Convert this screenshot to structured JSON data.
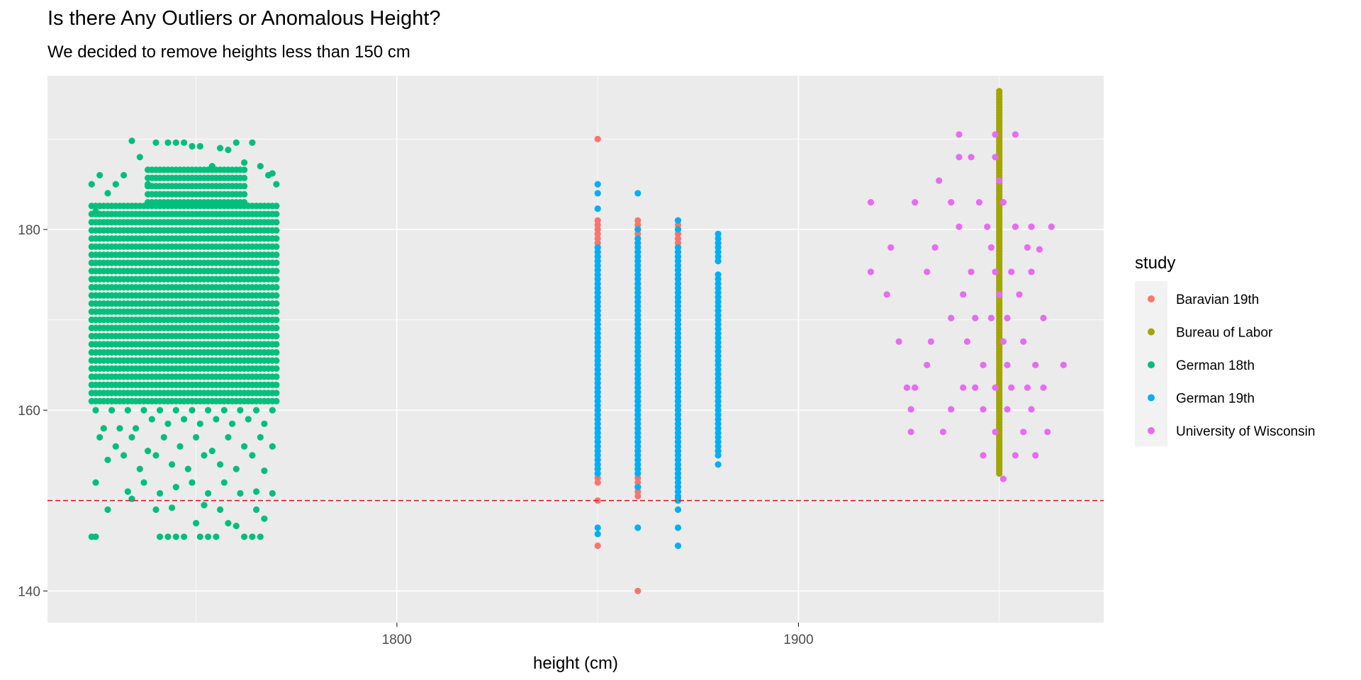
{
  "chart_data": {
    "type": "scatter",
    "title": "Is there Any Outliers or Anomalous Height?",
    "subtitle": "We decided to remove heights less than 150 cm",
    "xlabel": "height (cm)",
    "ylabel": "",
    "xlim": [
      1713,
      1976
    ],
    "ylim": [
      136.5,
      197
    ],
    "x_ticks": [
      1800,
      1900
    ],
    "x_tick_labels": [
      "1800",
      "1900"
    ],
    "y_ticks": [
      140,
      160,
      180
    ],
    "y_tick_labels": [
      "140",
      "160",
      "180"
    ],
    "grid": true,
    "panel_background": "#EBEBEB",
    "reference_line": {
      "y": 150,
      "color": "#E41A1C",
      "style": "dashed"
    },
    "legend": {
      "title": "study",
      "position": "right",
      "entries": [
        {
          "label": "Baravian 19th",
          "color": "#F8766D"
        },
        {
          "label": "Bureau of Labor",
          "color": "#A3A500"
        },
        {
          "label": "German 18th",
          "color": "#00BF7D"
        },
        {
          "label": "German 19th",
          "color": "#00B0F6"
        },
        {
          "label": "University of Wisconsin",
          "color": "#E76BF3"
        }
      ]
    },
    "series": [
      {
        "name": "German 18th",
        "color": "#00BF7D",
        "blocks": [
          {
            "x": [
              1724,
              1770
            ],
            "y": [
              161,
              183
            ],
            "step_x": 1,
            "step_y": 0.9
          },
          {
            "x": [
              1738,
              1762
            ],
            "y": [
              183,
              187
            ],
            "step_x": 1,
            "step_y": 0.9
          }
        ],
        "points": [
          [
            1724,
            185
          ],
          [
            1725,
            182
          ],
          [
            1726,
            186
          ],
          [
            1728,
            184
          ],
          [
            1730,
            185
          ],
          [
            1732,
            186
          ],
          [
            1734,
            189.8
          ],
          [
            1736,
            188
          ],
          [
            1738,
            185
          ],
          [
            1740,
            189.6
          ],
          [
            1743,
            189.6
          ],
          [
            1745,
            189.6
          ],
          [
            1747,
            189.6
          ],
          [
            1749,
            189.2
          ],
          [
            1751,
            189.2
          ],
          [
            1754,
            187
          ],
          [
            1756,
            189
          ],
          [
            1758,
            188.8
          ],
          [
            1760,
            189.6
          ],
          [
            1762,
            187.4
          ],
          [
            1764,
            189.6
          ],
          [
            1766,
            187
          ],
          [
            1768,
            186
          ],
          [
            1769,
            186.2
          ],
          [
            1770,
            185
          ],
          [
            1725,
            160
          ],
          [
            1727,
            158
          ],
          [
            1729,
            160
          ],
          [
            1731,
            158
          ],
          [
            1733,
            160
          ],
          [
            1735,
            158
          ],
          [
            1737,
            160
          ],
          [
            1739,
            159
          ],
          [
            1741,
            160
          ],
          [
            1743,
            158.5
          ],
          [
            1745,
            160
          ],
          [
            1747,
            159
          ],
          [
            1749,
            160
          ],
          [
            1751,
            158.5
          ],
          [
            1753,
            160
          ],
          [
            1755,
            159
          ],
          [
            1757,
            160
          ],
          [
            1759,
            158.5
          ],
          [
            1761,
            160
          ],
          [
            1763,
            159
          ],
          [
            1765,
            160
          ],
          [
            1767,
            158.5
          ],
          [
            1769,
            160
          ],
          [
            1726,
            157
          ],
          [
            1730,
            156
          ],
          [
            1734,
            157
          ],
          [
            1738,
            155.5
          ],
          [
            1742,
            157
          ],
          [
            1746,
            156
          ],
          [
            1750,
            157
          ],
          [
            1754,
            155.5
          ],
          [
            1758,
            157
          ],
          [
            1762,
            156
          ],
          [
            1766,
            157
          ],
          [
            1769,
            156
          ],
          [
            1728,
            154.5
          ],
          [
            1732,
            155
          ],
          [
            1736,
            153.5
          ],
          [
            1740,
            155
          ],
          [
            1744,
            154
          ],
          [
            1748,
            153.5
          ],
          [
            1752,
            155
          ],
          [
            1756,
            154
          ],
          [
            1760,
            153.5
          ],
          [
            1764,
            155
          ],
          [
            1767,
            153.3
          ],
          [
            1725,
            152
          ],
          [
            1733,
            151
          ],
          [
            1737,
            152
          ],
          [
            1741,
            150.8
          ],
          [
            1745,
            151.5
          ],
          [
            1749,
            152
          ],
          [
            1753,
            150.8
          ],
          [
            1757,
            152
          ],
          [
            1761,
            150.8
          ],
          [
            1765,
            151
          ],
          [
            1769,
            150.8
          ],
          [
            1728,
            149
          ],
          [
            1734,
            150.2
          ],
          [
            1740,
            149
          ],
          [
            1744,
            149.2
          ],
          [
            1752,
            149.5
          ],
          [
            1756,
            149
          ],
          [
            1760,
            147.2
          ],
          [
            1765,
            149
          ],
          [
            1767,
            148
          ],
          [
            1724,
            146
          ],
          [
            1725,
            146
          ],
          [
            1741,
            146
          ],
          [
            1743,
            146
          ],
          [
            1745,
            146
          ],
          [
            1747,
            146
          ],
          [
            1751,
            146
          ],
          [
            1753,
            146
          ],
          [
            1755,
            146
          ],
          [
            1762,
            146
          ],
          [
            1764,
            146
          ],
          [
            1766,
            146
          ],
          [
            1750,
            147.5
          ],
          [
            1758,
            147.5
          ]
        ]
      },
      {
        "name": "Baravian 19th",
        "color": "#F8766D",
        "lines": [
          {
            "x": 1850,
            "y": [
              152,
              181
            ],
            "step": 0.5
          },
          {
            "x": 1860,
            "y": [
              150.5,
              181
            ],
            "step": 0.5
          },
          {
            "x": 1870,
            "y": [
              151,
              181
            ],
            "step": 0.5
          }
        ],
        "points": [
          [
            1850,
            190
          ],
          [
            1850,
            150
          ],
          [
            1850,
            145
          ],
          [
            1860,
            140
          ],
          [
            1860,
            155
          ],
          [
            1870,
            150.3
          ],
          [
            1870,
            157
          ]
        ]
      },
      {
        "name": "German 19th",
        "color": "#00B0F6",
        "lines": [
          {
            "x": 1850,
            "y": [
              153,
              178
            ],
            "step": 0.5
          },
          {
            "x": 1860,
            "y": [
              153,
              179
            ],
            "step": 0.5
          },
          {
            "x": 1870,
            "y": [
              150,
              178
            ],
            "step": 0.5
          },
          {
            "x": 1880,
            "y": [
              155,
              175
            ],
            "step": 0.5
          },
          {
            "x": 1880,
            "y": [
              176.5,
              179.5
            ],
            "step": 0.5
          }
        ],
        "points": [
          [
            1850,
            185
          ],
          [
            1850,
            184
          ],
          [
            1850,
            182.3
          ],
          [
            1850,
            147
          ],
          [
            1850,
            146.3
          ],
          [
            1860,
            184
          ],
          [
            1860,
            180
          ],
          [
            1860,
            151.5
          ],
          [
            1860,
            147
          ],
          [
            1870,
            181
          ],
          [
            1870,
            180
          ],
          [
            1870,
            149
          ],
          [
            1870,
            147
          ],
          [
            1870,
            145
          ],
          [
            1880,
            154
          ]
        ]
      },
      {
        "name": "Bureau of Labor",
        "color": "#A3A500",
        "lines": [
          {
            "x": 1950,
            "y": [
              153,
              195.5
            ],
            "step": 0.3
          }
        ],
        "points": []
      },
      {
        "name": "University of Wisconsin",
        "color": "#E76BF3",
        "points": [
          [
            1918,
            183
          ],
          [
            1918,
            175.3
          ],
          [
            1923,
            178
          ],
          [
            1922,
            172.8
          ],
          [
            1925,
            167.6
          ],
          [
            1927,
            162.5
          ],
          [
            1928,
            157.6
          ],
          [
            1928,
            160.1
          ],
          [
            1929,
            183
          ],
          [
            1929,
            162.5
          ],
          [
            1932,
            175.3
          ],
          [
            1932,
            165
          ],
          [
            1933,
            167.6
          ],
          [
            1934,
            178
          ],
          [
            1935,
            185.4
          ],
          [
            1936,
            157.6
          ],
          [
            1938,
            183
          ],
          [
            1938,
            170.2
          ],
          [
            1938,
            160.1
          ],
          [
            1940,
            190.5
          ],
          [
            1940,
            188
          ],
          [
            1940,
            180.3
          ],
          [
            1941,
            172.8
          ],
          [
            1941,
            162.5
          ],
          [
            1942,
            167.6
          ],
          [
            1943,
            188
          ],
          [
            1943,
            175.3
          ],
          [
            1944,
            170.2
          ],
          [
            1944,
            162.5
          ],
          [
            1945,
            183
          ],
          [
            1946,
            165
          ],
          [
            1946,
            160.1
          ],
          [
            1946,
            155
          ],
          [
            1947,
            180.3
          ],
          [
            1948,
            178
          ],
          [
            1948,
            170.2
          ],
          [
            1949,
            175.3
          ],
          [
            1949,
            162.5
          ],
          [
            1949,
            157.6
          ],
          [
            1949,
            188
          ],
          [
            1949,
            190.5
          ],
          [
            1950,
            172.8
          ],
          [
            1950,
            185.4
          ],
          [
            1951,
            167.6
          ],
          [
            1951,
            183
          ],
          [
            1951,
            152.4
          ],
          [
            1952,
            170.2
          ],
          [
            1952,
            160.1
          ],
          [
            1952,
            165
          ],
          [
            1953,
            175.3
          ],
          [
            1953,
            162.5
          ],
          [
            1954,
            190.5
          ],
          [
            1954,
            180.3
          ],
          [
            1954,
            155
          ],
          [
            1955,
            172.8
          ],
          [
            1956,
            167.6
          ],
          [
            1956,
            157.6
          ],
          [
            1957,
            178
          ],
          [
            1957,
            162.5
          ],
          [
            1958,
            175.3
          ],
          [
            1958,
            160.1
          ],
          [
            1958,
            180.3
          ],
          [
            1959,
            165
          ],
          [
            1959,
            155
          ],
          [
            1960,
            177.8
          ],
          [
            1961,
            170.2
          ],
          [
            1961,
            162.5
          ],
          [
            1962,
            157.6
          ],
          [
            1963,
            180.3
          ],
          [
            1966,
            165
          ]
        ]
      }
    ]
  }
}
